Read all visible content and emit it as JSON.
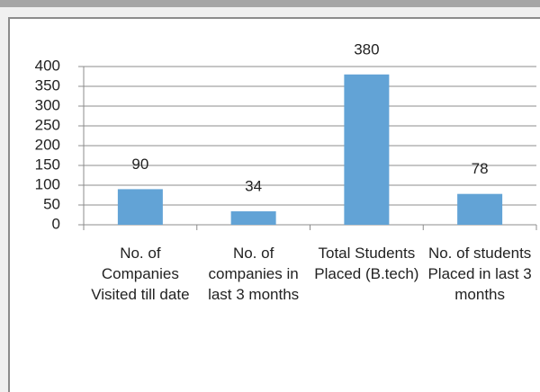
{
  "chart_data": {
    "type": "bar",
    "categories": [
      "No. of Companies Visited till date",
      "No. of companies in last 3 months",
      "Total Students Placed (B.tech)",
      "No. of students Placed in last 3 months"
    ],
    "values": [
      90,
      34,
      380,
      78
    ],
    "color": "#62a3d6",
    "ylim": [
      0,
      400
    ],
    "yticks": [
      0,
      50,
      100,
      150,
      200,
      250,
      300,
      350,
      400
    ],
    "grid": true,
    "data_labels": true
  }
}
